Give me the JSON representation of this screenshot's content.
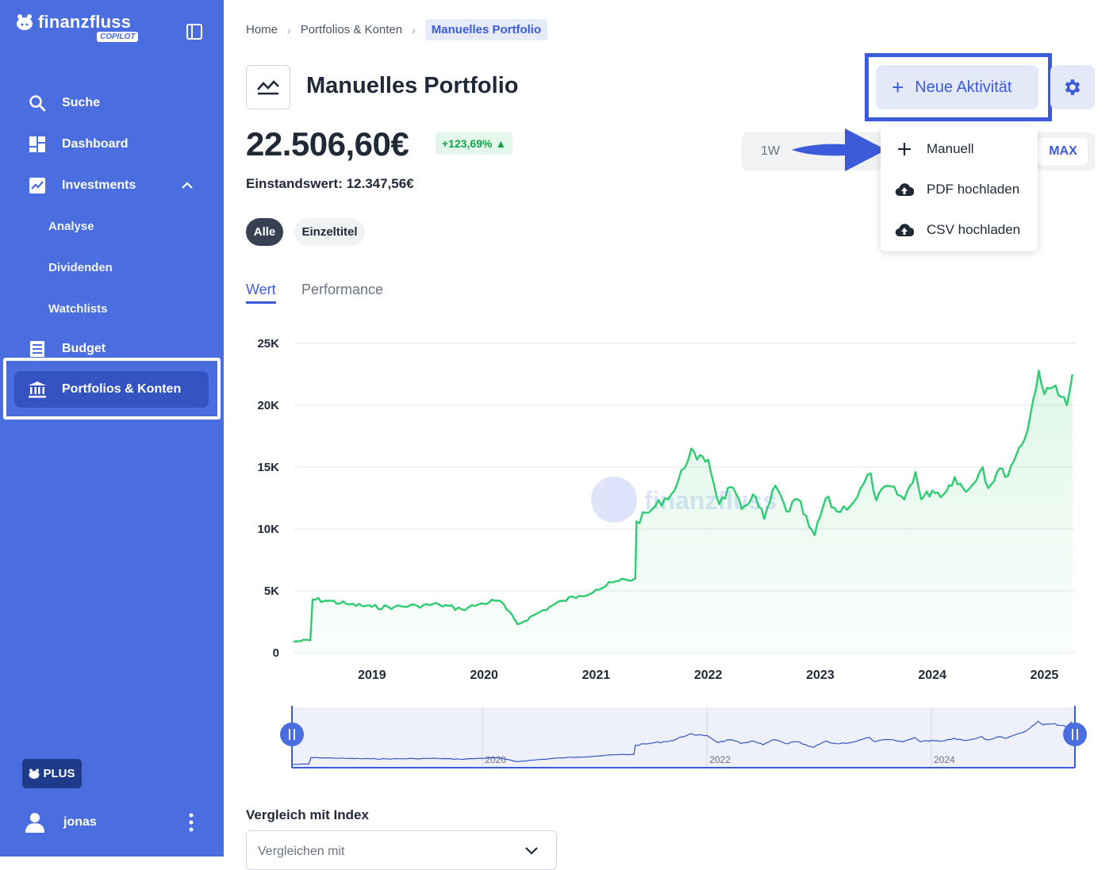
{
  "brand": {
    "name": "finanzfluss",
    "badge": "COPILOT"
  },
  "sidebar": {
    "items": [
      {
        "label": "Suche",
        "icon": "search-icon"
      },
      {
        "label": "Dashboard",
        "icon": "dashboard-icon"
      },
      {
        "label": "Investments",
        "icon": "chart-line-icon",
        "expanded": true
      },
      {
        "label": "Budget",
        "icon": "list-icon"
      },
      {
        "label": "Portfolios & Konten",
        "icon": "bank-icon",
        "active": true
      }
    ],
    "subitems": [
      "Analyse",
      "Dividenden",
      "Watchlists"
    ],
    "plus_label": "PLUS",
    "user_name": "jonas"
  },
  "breadcrumb": [
    "Home",
    "Portfolios & Konten",
    "Manuelles Portfolio"
  ],
  "page": {
    "title": "Manuelles Portfolio",
    "value": "22.506,60€",
    "change": "+123,69%",
    "cost_basis": "Einstandswert: 12.347,56€",
    "new_activity": "Neue Aktivität"
  },
  "dropdown": {
    "items": [
      {
        "label": "Manuell",
        "icon": "plus-icon"
      },
      {
        "label": "PDF hochladen",
        "icon": "cloud-upload-icon"
      },
      {
        "label": "CSV hochladen",
        "icon": "cloud-upload-icon"
      }
    ]
  },
  "ranges": {
    "first": "1W",
    "selected": "MAX"
  },
  "filters": [
    "Alle",
    "Einzeltitel"
  ],
  "tabs": [
    "Wert",
    "Performance"
  ],
  "watermark": "finanzfluss",
  "colors": {
    "sidebar": "#4a6ee0",
    "accent": "#3b5bdb",
    "positive": "#16a34a",
    "line": "#2ecc71"
  },
  "compare": {
    "label": "Vergleich mit Index",
    "placeholder": "Vergleichen mit"
  },
  "chart_data": {
    "type": "area",
    "ylim": [
      0,
      25000
    ],
    "yticks": [
      "0",
      "5K",
      "10K",
      "15K",
      "20K",
      "25K"
    ],
    "xticks": [
      "2019",
      "2020",
      "2021",
      "2022",
      "2023",
      "2024",
      "2025"
    ],
    "navigator_ticks": [
      "2020",
      "2022",
      "2024"
    ],
    "x": [
      2018.3,
      2018.45,
      2018.47,
      2018.6,
      2018.8,
      2019.0,
      2019.2,
      2019.4,
      2019.6,
      2019.8,
      2019.95,
      2020.1,
      2020.17,
      2020.2,
      2020.3,
      2020.5,
      2020.7,
      2020.85,
      2021.0,
      2021.2,
      2021.35,
      2021.36,
      2021.5,
      2021.7,
      2021.85,
      2021.9,
      2022.0,
      2022.1,
      2022.2,
      2022.3,
      2022.4,
      2022.5,
      2022.6,
      2022.7,
      2022.8,
      2022.9,
      2022.95,
      2023.05,
      2023.15,
      2023.3,
      2023.45,
      2023.5,
      2023.6,
      2023.75,
      2023.85,
      2023.9,
      2024.0,
      2024.1,
      2024.2,
      2024.3,
      2024.45,
      2024.5,
      2024.6,
      2024.65,
      2024.75,
      2024.85,
      2024.95,
      2025.0,
      2025.1,
      2025.2,
      2025.25
    ],
    "values": [
      900,
      1000,
      4300,
      4200,
      3900,
      3700,
      3700,
      3800,
      3900,
      3500,
      3900,
      4200,
      4000,
      3500,
      2300,
      3300,
      4200,
      4600,
      5100,
      5800,
      6000,
      10600,
      11600,
      13100,
      16500,
      15600,
      15600,
      12000,
      13400,
      11600,
      12800,
      10800,
      13500,
      11400,
      12400,
      10200,
      9500,
      12500,
      11400,
      12200,
      14500,
      12300,
      13500,
      12400,
      14600,
      12400,
      13100,
      12800,
      14200,
      13000,
      15000,
      13300,
      14900,
      14200,
      16000,
      18000,
      22800,
      20900,
      21600,
      20000,
      22500
    ]
  }
}
